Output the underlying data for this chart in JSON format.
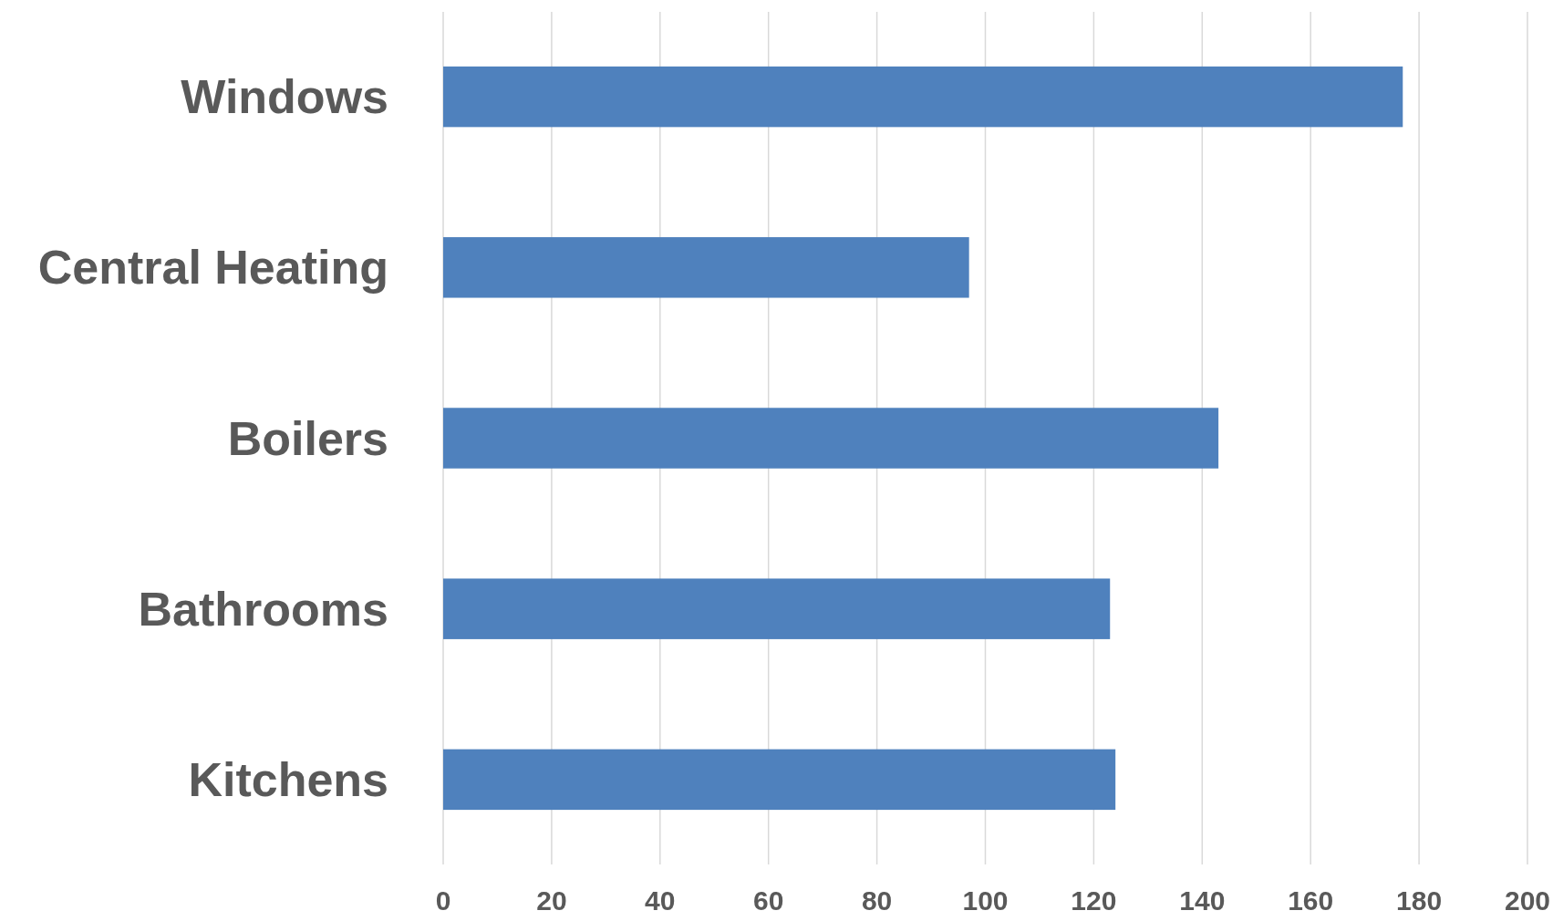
{
  "chart_data": {
    "type": "bar",
    "orientation": "horizontal",
    "categories": [
      "Windows",
      "Central Heating",
      "Boilers",
      "Bathrooms",
      "Kitchens"
    ],
    "values": [
      177,
      97,
      143,
      123,
      124
    ],
    "color": "#4f81bd",
    "xlim": [
      0,
      200
    ],
    "xticks": [
      0,
      20,
      40,
      60,
      80,
      100,
      120,
      140,
      160,
      180,
      200
    ],
    "grid": "x"
  }
}
